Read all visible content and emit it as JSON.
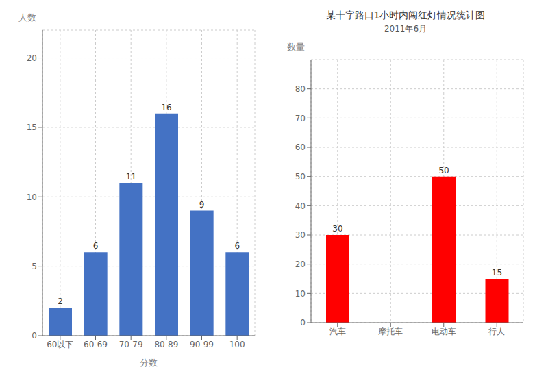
{
  "chart_data": [
    {
      "type": "bar",
      "categories": [
        "60以下",
        "60-69",
        "70-79",
        "80-89",
        "90-99",
        "100"
      ],
      "values": [
        2,
        6,
        11,
        16,
        9,
        6
      ],
      "color": "#4472c4",
      "xlabel": "分数",
      "ylabel": "人数",
      "ylim": [
        0,
        22
      ],
      "yticks": [
        0,
        5,
        10,
        15,
        20
      ],
      "grid": true,
      "data_labels": true
    },
    {
      "type": "bar",
      "title": "某十字路口1小时内闯红灯情况统计图",
      "subtitle": "2011年6月",
      "ylabel": "数量",
      "categories": [
        "汽车",
        "摩托车",
        "电动车",
        "行人"
      ],
      "values": [
        30,
        0,
        50,
        15
      ],
      "value_labels": [
        "30",
        null,
        "50",
        "15"
      ],
      "color": "#ff0000",
      "ylim": [
        0,
        90
      ],
      "yticks": [
        0,
        10,
        20,
        30,
        40,
        50,
        60,
        70,
        80
      ],
      "grid": true,
      "data_labels": true
    }
  ]
}
